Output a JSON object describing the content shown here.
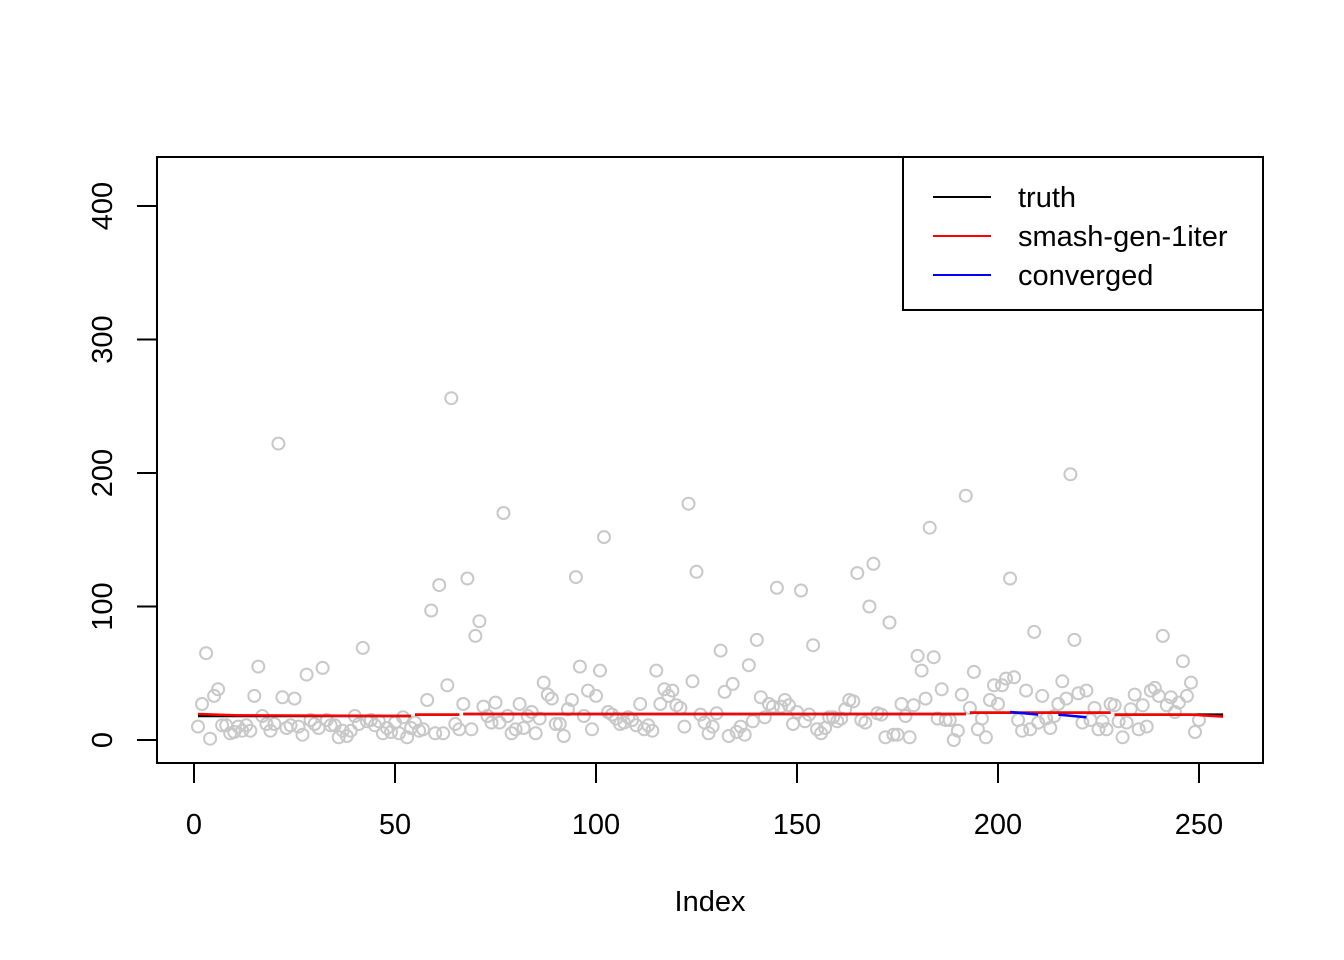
{
  "chart_data": {
    "type": "scatter",
    "title": "",
    "xlabel": "Index",
    "ylabel": "",
    "xlim": [
      0,
      256
    ],
    "ylim": [
      0,
      400
    ],
    "x_ticks": [
      "0",
      "50",
      "100",
      "150",
      "200",
      "250"
    ],
    "y_ticks": [
      "0",
      "100",
      "200",
      "300",
      "400"
    ],
    "legend": {
      "position": "top-right",
      "entries": [
        {
          "label": "truth",
          "color": "#000000"
        },
        {
          "label": "smash-gen-1iter",
          "color": "#ff0000"
        },
        {
          "label": "converged",
          "color": "#0000ff"
        }
      ]
    },
    "points": {
      "color": "#c8c8c8",
      "y": [
        10,
        27,
        65,
        1,
        33,
        38,
        11,
        11,
        5,
        6,
        10,
        7,
        11,
        7,
        33,
        55,
        18,
        12,
        7,
        12,
        222,
        32,
        9,
        11,
        31,
        10,
        4,
        49,
        15,
        12,
        9,
        54,
        15,
        11,
        11,
        2,
        7,
        3,
        7,
        18,
        12,
        69,
        14,
        15,
        11,
        14,
        5,
        9,
        6,
        13,
        5,
        17,
        2,
        9,
        13,
        7,
        8,
        30,
        97,
        5,
        116,
        5,
        41,
        256,
        12,
        8,
        27,
        121,
        8,
        78,
        89,
        25,
        18,
        13,
        28,
        13,
        170,
        18,
        5,
        8,
        27,
        9,
        18,
        21,
        5,
        16,
        43,
        34,
        31,
        12,
        12,
        3,
        23,
        30,
        122,
        55,
        18,
        37,
        8,
        33,
        52,
        152,
        21,
        19,
        16,
        12,
        13,
        17,
        15,
        11,
        27,
        8,
        11,
        7,
        52,
        27,
        38,
        33,
        37,
        26,
        24,
        10,
        177,
        44,
        126,
        19,
        13,
        5,
        10,
        20,
        67,
        36,
        3,
        42,
        6,
        10,
        4,
        56,
        14,
        75,
        32,
        17,
        27,
        25,
        114,
        25,
        30,
        26,
        12,
        21,
        112,
        14,
        19,
        71,
        8,
        5,
        9,
        17,
        17,
        14,
        16,
        23,
        30,
        29,
        125,
        15,
        13,
        100,
        132,
        20,
        19,
        2,
        88,
        4,
        4,
        27,
        18,
        2,
        26,
        63,
        52,
        31,
        159,
        62,
        16,
        38,
        15,
        15,
        0,
        7,
        34,
        183,
        24,
        51,
        8,
        16,
        2,
        30,
        41,
        27,
        41,
        46,
        121,
        47,
        15,
        7,
        37,
        8,
        81,
        13,
        33,
        16,
        9,
        18,
        27,
        44,
        31,
        199,
        75,
        35,
        13,
        37,
        15,
        24,
        8,
        14,
        8,
        27,
        26,
        14,
        2,
        13,
        23,
        34,
        8,
        26,
        10,
        37,
        39,
        33,
        78,
        26,
        32,
        21,
        28,
        59,
        33,
        43,
        6,
        15
      ]
    },
    "lines": [
      {
        "name": "truth",
        "color": "#000000",
        "segments": [
          {
            "x": [
              1,
              54
            ],
            "y": [
              18,
              18
            ]
          },
          {
            "x": [
              55,
              66
            ],
            "y": [
              19,
              19
            ]
          },
          {
            "x": [
              67,
              192
            ],
            "y": [
              19.5,
              19.5
            ]
          },
          {
            "x": [
              193,
              228
            ],
            "y": [
              20.5,
              20.5
            ]
          },
          {
            "x": [
              229,
              256
            ],
            "y": [
              19,
              19
            ]
          }
        ]
      },
      {
        "name": "smash-gen-1iter",
        "color": "#ff0000",
        "segments": [
          {
            "x": [
              1,
              10
            ],
            "y": [
              19.5,
              18.5
            ]
          },
          {
            "x": [
              10,
              54
            ],
            "y": [
              18.5,
              18
            ]
          },
          {
            "x": [
              55,
              66
            ],
            "y": [
              19,
              19
            ]
          },
          {
            "x": [
              67,
              192
            ],
            "y": [
              19.5,
              19.5
            ]
          },
          {
            "x": [
              193,
              228
            ],
            "y": [
              20.5,
              20.5
            ]
          },
          {
            "x": [
              229,
              248
            ],
            "y": [
              19,
              19
            ]
          },
          {
            "x": [
              248,
              256
            ],
            "y": [
              19,
              17.5
            ]
          }
        ]
      },
      {
        "name": "converged",
        "color": "#0000ff",
        "segments": [
          {
            "x": [
              203,
              210
            ],
            "y": [
              21,
              19
            ]
          },
          {
            "x": [
              215,
              222
            ],
            "y": [
              19,
              17
            ]
          }
        ]
      }
    ]
  }
}
